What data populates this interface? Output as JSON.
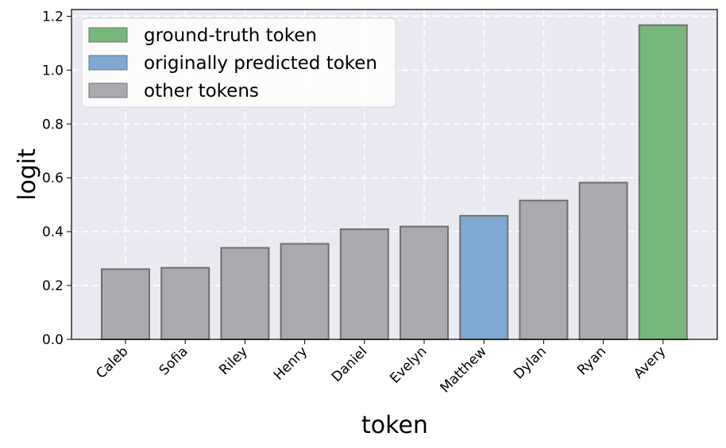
{
  "chart_data": {
    "type": "bar",
    "xlabel": "token",
    "ylabel": "logit",
    "categories": [
      "Caleb",
      "Sofia",
      "Riley",
      "Henry",
      "Daniel",
      "Evelyn",
      "Matthew",
      "Dylan",
      "Ryan",
      "Avery"
    ],
    "values": [
      0.261,
      0.266,
      0.34,
      0.355,
      0.409,
      0.419,
      0.459,
      0.516,
      0.582,
      1.167
    ],
    "bar_roles": [
      "other",
      "other",
      "other",
      "other",
      "other",
      "other",
      "predicted",
      "other",
      "other",
      "ground_truth"
    ],
    "ylim": [
      0,
      1.225
    ],
    "yticks": [
      "0.0",
      "0.2",
      "0.4",
      "0.6",
      "0.8",
      "1.0",
      "1.2"
    ],
    "grid": true,
    "legend_position": "top-left",
    "legend": [
      {
        "role": "ground_truth",
        "label": "ground-truth token"
      },
      {
        "role": "predicted",
        "label": "originally predicted token"
      },
      {
        "role": "other",
        "label": "other tokens"
      }
    ],
    "colors": {
      "ground_truth": "#77b77a",
      "predicted": "#7fa8d2",
      "other": "#a9a9ae",
      "background": "#eaeaf2",
      "edge": "#707070"
    }
  }
}
